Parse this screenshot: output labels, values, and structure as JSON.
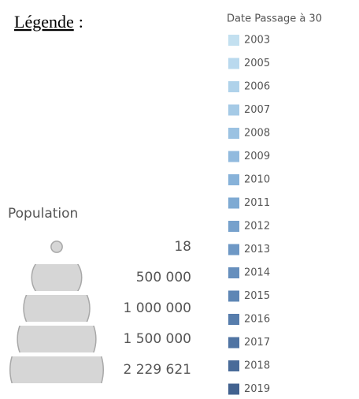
{
  "legend": {
    "title": "Légende",
    "title_punctuation": ":",
    "population": {
      "title": "Population",
      "items": [
        {
          "value": 18,
          "label": "18"
        },
        {
          "value": 500000,
          "label": "500 000"
        },
        {
          "value": 1000000,
          "label": "1 000 000"
        },
        {
          "value": 1500000,
          "label": "1 500 000"
        },
        {
          "value": 2229621,
          "label": "2 229 621"
        }
      ]
    },
    "date": {
      "title": "Date Passage à 30",
      "items": [
        {
          "year": 2003,
          "color": "#c3e0f0"
        },
        {
          "year": 2005,
          "color": "#b9d9ee"
        },
        {
          "year": 2006,
          "color": "#afd2ea"
        },
        {
          "year": 2007,
          "color": "#a5cae6"
        },
        {
          "year": 2008,
          "color": "#9bc2e2"
        },
        {
          "year": 2009,
          "color": "#91bade"
        },
        {
          "year": 2010,
          "color": "#87b2d9"
        },
        {
          "year": 2011,
          "color": "#7eaad3"
        },
        {
          "year": 2012,
          "color": "#76a1cc"
        },
        {
          "year": 2013,
          "color": "#6e98c5"
        },
        {
          "year": 2014,
          "color": "#668fbd"
        },
        {
          "year": 2015,
          "color": "#5e86b5"
        },
        {
          "year": 2016,
          "color": "#577dac"
        },
        {
          "year": 2017,
          "color": "#5074a3"
        },
        {
          "year": 2018,
          "color": "#496b99"
        },
        {
          "year": 2019,
          "color": "#42628f"
        }
      ]
    }
  }
}
